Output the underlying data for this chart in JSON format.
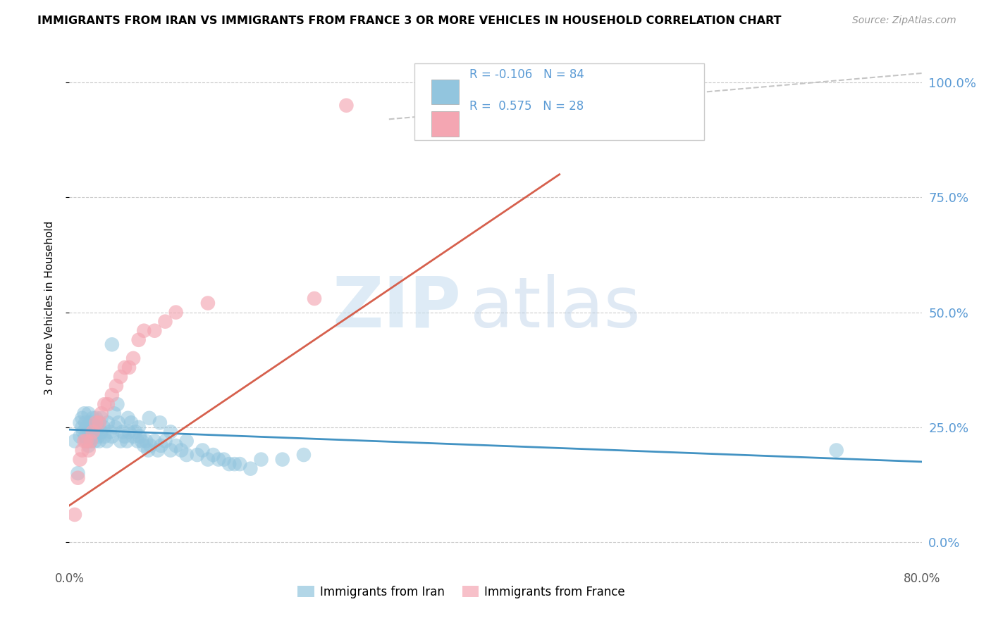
{
  "title": "IMMIGRANTS FROM IRAN VS IMMIGRANTS FROM FRANCE 3 OR MORE VEHICLES IN HOUSEHOLD CORRELATION CHART",
  "source": "Source: ZipAtlas.com",
  "ylabel": "3 or more Vehicles in Household",
  "legend_iran": "Immigrants from Iran",
  "legend_france": "Immigrants from France",
  "iran_R": -0.106,
  "iran_N": 84,
  "france_R": 0.575,
  "france_N": 28,
  "iran_color": "#92c5de",
  "france_color": "#f4a6b2",
  "iran_line_color": "#4393c3",
  "france_line_color": "#d6604d",
  "diag_line_color": "#bbbbbb",
  "right_axis_color": "#5b9bd5",
  "xmin": 0.0,
  "xmax": 0.8,
  "ymin": -0.05,
  "ymax": 1.07,
  "xticks": [
    0.0,
    0.1,
    0.2,
    0.3,
    0.4,
    0.5,
    0.6,
    0.7,
    0.8
  ],
  "xtick_labels": [
    "0.0%",
    "",
    "",
    "",
    "",
    "",
    "",
    "",
    "80.0%"
  ],
  "yticks": [
    0.0,
    0.25,
    0.5,
    0.75,
    1.0
  ],
  "ytick_labels_right": [
    "0.0%",
    "25.0%",
    "50.0%",
    "75.0%",
    "100.0%"
  ],
  "watermark_zip": "ZIP",
  "watermark_atlas": "atlas",
  "iran_scatter_x": [
    0.005,
    0.008,
    0.01,
    0.01,
    0.012,
    0.012,
    0.013,
    0.014,
    0.015,
    0.015,
    0.016,
    0.017,
    0.018,
    0.018,
    0.019,
    0.02,
    0.02,
    0.021,
    0.022,
    0.022,
    0.023,
    0.024,
    0.025,
    0.025,
    0.026,
    0.027,
    0.028,
    0.028,
    0.03,
    0.03,
    0.032,
    0.033,
    0.035,
    0.036,
    0.038,
    0.04,
    0.042,
    0.043,
    0.045,
    0.046,
    0.048,
    0.05,
    0.052,
    0.054,
    0.056,
    0.058,
    0.06,
    0.062,
    0.064,
    0.066,
    0.068,
    0.07,
    0.072,
    0.074,
    0.076,
    0.08,
    0.083,
    0.086,
    0.09,
    0.095,
    0.1,
    0.105,
    0.11,
    0.12,
    0.13,
    0.14,
    0.15,
    0.16,
    0.17,
    0.18,
    0.2,
    0.22,
    0.04,
    0.055,
    0.065,
    0.075,
    0.085,
    0.095,
    0.11,
    0.125,
    0.135,
    0.145,
    0.155,
    0.72
  ],
  "iran_scatter_y": [
    0.22,
    0.15,
    0.23,
    0.26,
    0.25,
    0.27,
    0.24,
    0.28,
    0.23,
    0.26,
    0.25,
    0.22,
    0.21,
    0.28,
    0.24,
    0.22,
    0.26,
    0.25,
    0.24,
    0.27,
    0.23,
    0.22,
    0.24,
    0.27,
    0.25,
    0.23,
    0.22,
    0.26,
    0.27,
    0.24,
    0.25,
    0.23,
    0.22,
    0.26,
    0.24,
    0.23,
    0.28,
    0.25,
    0.3,
    0.26,
    0.22,
    0.24,
    0.23,
    0.22,
    0.24,
    0.26,
    0.23,
    0.24,
    0.22,
    0.23,
    0.22,
    0.21,
    0.22,
    0.2,
    0.21,
    0.22,
    0.2,
    0.21,
    0.22,
    0.2,
    0.21,
    0.2,
    0.19,
    0.19,
    0.18,
    0.18,
    0.17,
    0.17,
    0.16,
    0.18,
    0.18,
    0.19,
    0.43,
    0.27,
    0.25,
    0.27,
    0.26,
    0.24,
    0.22,
    0.2,
    0.19,
    0.18,
    0.17,
    0.2
  ],
  "france_scatter_x": [
    0.005,
    0.008,
    0.01,
    0.012,
    0.014,
    0.016,
    0.018,
    0.02,
    0.022,
    0.025,
    0.028,
    0.03,
    0.033,
    0.036,
    0.04,
    0.044,
    0.048,
    0.052,
    0.056,
    0.06,
    0.065,
    0.07,
    0.08,
    0.09,
    0.1,
    0.13,
    0.23,
    0.26
  ],
  "france_scatter_y": [
    0.06,
    0.14,
    0.18,
    0.2,
    0.22,
    0.22,
    0.2,
    0.22,
    0.24,
    0.26,
    0.26,
    0.28,
    0.3,
    0.3,
    0.32,
    0.34,
    0.36,
    0.38,
    0.38,
    0.4,
    0.44,
    0.46,
    0.46,
    0.48,
    0.5,
    0.52,
    0.53,
    0.95
  ],
  "iran_line_x": [
    0.0,
    0.8
  ],
  "iran_line_y": [
    0.245,
    0.175
  ],
  "france_line_x": [
    0.0,
    0.46
  ],
  "france_line_y": [
    0.08,
    0.8
  ],
  "diag_line_x": [
    0.3,
    0.8
  ],
  "diag_line_y": [
    0.92,
    1.02
  ]
}
